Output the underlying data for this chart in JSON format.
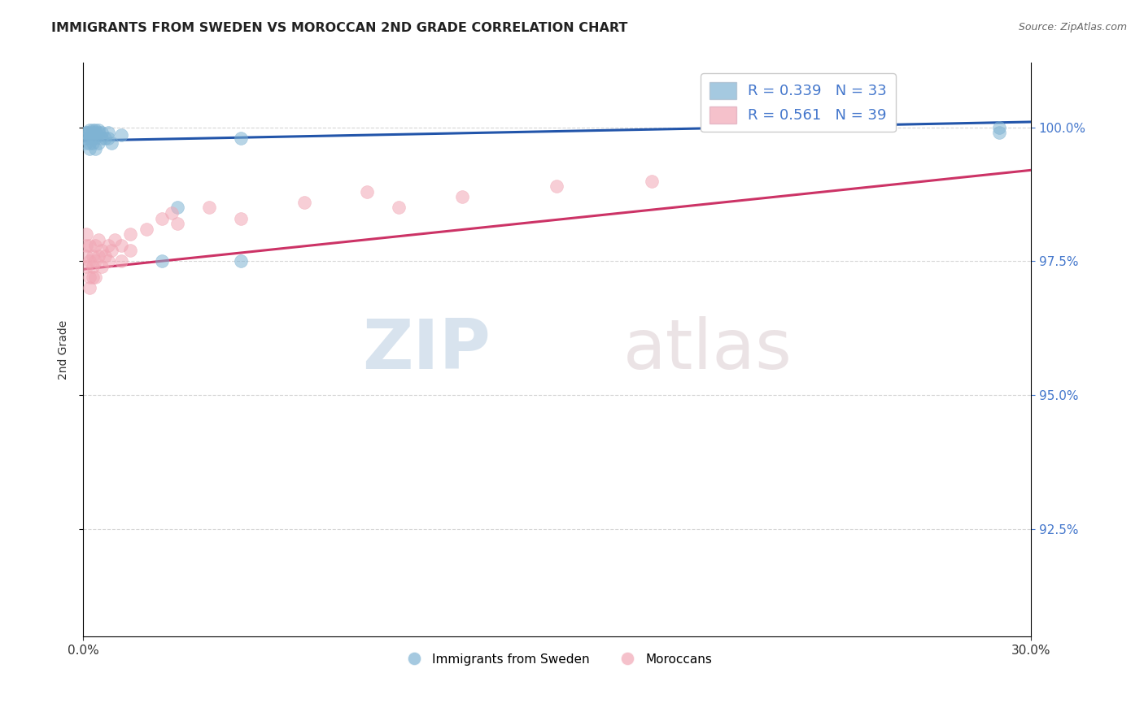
{
  "title": "IMMIGRANTS FROM SWEDEN VS MOROCCAN 2ND GRADE CORRELATION CHART",
  "source": "Source: ZipAtlas.com",
  "ylabel": "2nd Grade",
  "ytick_values": [
    0.925,
    0.95,
    0.975,
    1.0
  ],
  "xmin": 0.0,
  "xmax": 0.3,
  "ymin": 0.905,
  "ymax": 1.012,
  "legend_r_blue": "R = 0.339",
  "legend_n_blue": "N = 33",
  "legend_r_pink": "R = 0.561",
  "legend_n_pink": "N = 39",
  "legend_label_blue": "Immigrants from Sweden",
  "legend_label_pink": "Moroccans",
  "blue_color": "#7fb3d3",
  "pink_color": "#f1a7b5",
  "trendline_blue": "#2255aa",
  "trendline_pink": "#cc3366",
  "sweden_x": [
    0.001,
    0.001,
    0.001,
    0.001,
    0.002,
    0.002,
    0.002,
    0.002,
    0.003,
    0.003,
    0.003,
    0.004,
    0.004,
    0.004,
    0.005,
    0.005,
    0.006,
    0.006,
    0.007,
    0.008,
    0.008,
    0.009,
    0.012,
    0.025,
    0.03,
    0.05,
    0.05,
    0.29,
    0.29,
    0.002,
    0.003,
    0.004,
    0.005
  ],
  "sweden_y": [
    0.999,
    0.998,
    0.997,
    0.999,
    0.9995,
    0.999,
    0.998,
    0.997,
    0.9995,
    0.999,
    0.998,
    0.9995,
    0.999,
    0.998,
    0.9995,
    0.999,
    0.999,
    0.998,
    0.998,
    0.999,
    0.998,
    0.997,
    0.9985,
    0.975,
    0.985,
    0.998,
    0.975,
    1.0,
    0.999,
    0.996,
    0.997,
    0.996,
    0.997
  ],
  "moroccan_x": [
    0.001,
    0.001,
    0.001,
    0.001,
    0.002,
    0.002,
    0.002,
    0.002,
    0.003,
    0.003,
    0.003,
    0.004,
    0.004,
    0.004,
    0.005,
    0.005,
    0.006,
    0.006,
    0.007,
    0.008,
    0.008,
    0.009,
    0.01,
    0.012,
    0.012,
    0.015,
    0.015,
    0.02,
    0.025,
    0.028,
    0.03,
    0.04,
    0.05,
    0.07,
    0.09,
    0.1,
    0.12,
    0.15,
    0.18
  ],
  "moroccan_y": [
    0.98,
    0.978,
    0.976,
    0.974,
    0.978,
    0.975,
    0.972,
    0.97,
    0.976,
    0.974,
    0.972,
    0.978,
    0.975,
    0.972,
    0.979,
    0.976,
    0.977,
    0.974,
    0.976,
    0.978,
    0.975,
    0.977,
    0.979,
    0.978,
    0.975,
    0.98,
    0.977,
    0.981,
    0.983,
    0.984,
    0.982,
    0.985,
    0.983,
    0.986,
    0.988,
    0.985,
    0.987,
    0.989,
    0.99
  ],
  "watermark_zip": "ZIP",
  "watermark_atlas": "atlas",
  "grid_color": "#cccccc"
}
